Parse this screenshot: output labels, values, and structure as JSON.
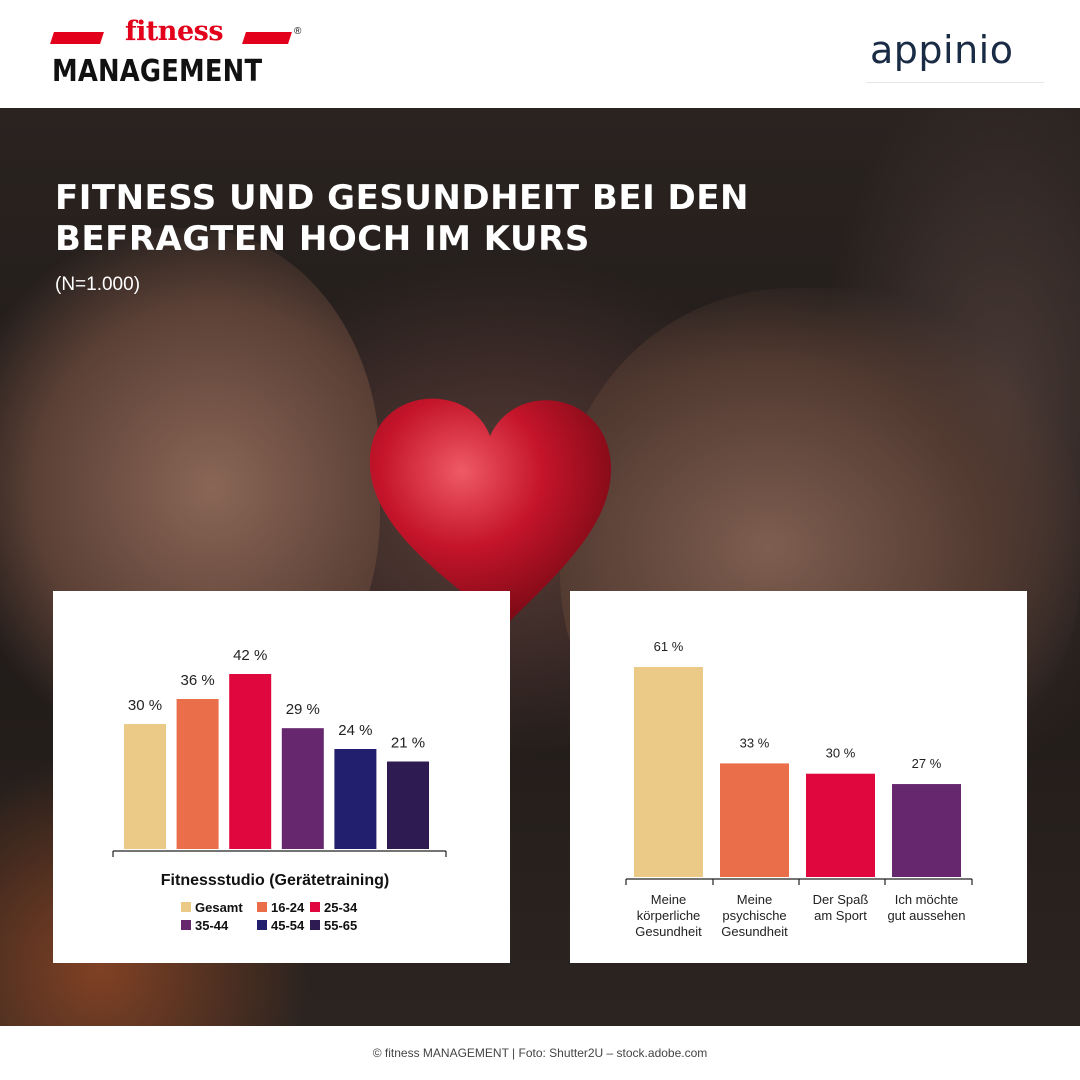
{
  "header": {
    "brand_top": "fitness",
    "brand_bottom": "MANAGEMENT",
    "brand_mark": "®",
    "partner_logo": "appinio"
  },
  "title": "FITNESS UND GESUNDHEIT BEI DEN BEFRAGTEN HOCH IM KURS",
  "subtitle": "(N=1.000)",
  "footer": "© fitness MANAGEMENT  |  Foto: Shutter2U – stock.adobe.com",
  "colors": {
    "gesamt": "#ebc987",
    "age_16_24": "#ea6e4a",
    "age_25_34": "#e0073e",
    "age_35_44": "#66276f",
    "age_45_54": "#221f6e",
    "age_55_65": "#2e1b52",
    "heart": "#c4142a",
    "brand_red": "#e3001b"
  },
  "chart_data": [
    {
      "type": "bar",
      "xlabel": "Fitnessstudio (Gerätetraining)",
      "categories": [
        "Gesamt",
        "16-24",
        "25-34",
        "35-44",
        "45-54",
        "55-65"
      ],
      "values": [
        30,
        36,
        42,
        29,
        24,
        21
      ],
      "value_labels": [
        "30 %",
        "36 %",
        "42 %",
        "29 %",
        "24 %",
        "21 %"
      ],
      "colors": [
        "#ebc987",
        "#ea6e4a",
        "#e0073e",
        "#66276f",
        "#221f6e",
        "#2e1b52"
      ],
      "legend": [
        "Gesamt",
        "16-24",
        "25-34",
        "35-44",
        "45-54",
        "55-65"
      ],
      "legend_placement": "bottom",
      "ylim": [
        0,
        42
      ],
      "grid": false
    },
    {
      "type": "bar",
      "categories": [
        "Meine körperliche Gesundheit",
        "Meine psychische Gesundheit",
        "Der Spaß am Sport",
        "Ich möchte gut aussehen"
      ],
      "category_lines": [
        [
          "Meine",
          "körperliche",
          "Gesundheit"
        ],
        [
          "Meine",
          "psychische",
          "Gesundheit"
        ],
        [
          "Der Spaß",
          "am Sport"
        ],
        [
          "Ich möchte",
          "gut aussehen"
        ]
      ],
      "values": [
        61,
        33,
        30,
        27
      ],
      "value_labels": [
        "61 %",
        "33 %",
        "30 %",
        "27 %"
      ],
      "colors": [
        "#ebc987",
        "#ea6e4a",
        "#e0073e",
        "#66276f"
      ],
      "ylim": [
        0,
        61
      ],
      "grid": false
    }
  ]
}
